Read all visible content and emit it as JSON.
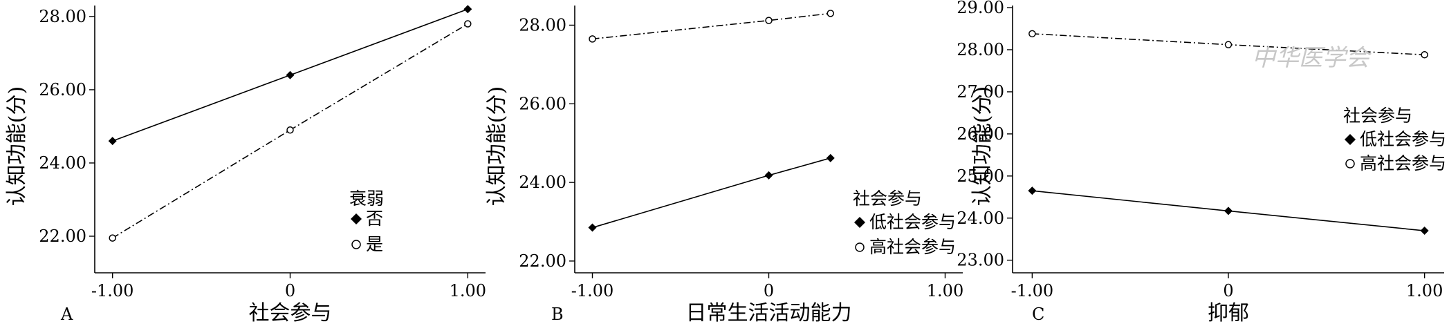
{
  "watermark_text": "中华医学会",
  "chart_data": [
    {
      "type": "line",
      "panel_label": "A",
      "xlabel": "社会参与",
      "ylabel": "认知功能(分)",
      "x_ticks": [
        "-1.00",
        "0",
        "1.00"
      ],
      "y_ticks": [
        "22.00",
        "24.00",
        "26.00",
        "28.00"
      ],
      "xlim": [
        -1.1,
        1.1
      ],
      "ylim": [
        21.0,
        28.3
      ],
      "legend_title": "衰弱",
      "legend_position": "center-right",
      "series": [
        {
          "name": "否",
          "marker": "filled-diamond",
          "linestyle": "solid",
          "x": [
            -1,
            0,
            1
          ],
          "y": [
            24.6,
            26.4,
            28.2
          ]
        },
        {
          "name": "是",
          "marker": "open-circle",
          "linestyle": "dashdot",
          "x": [
            -1,
            0,
            1
          ],
          "y": [
            21.95,
            24.9,
            27.8
          ]
        }
      ]
    },
    {
      "type": "line",
      "panel_label": "B",
      "xlabel": "日常生活活动能力",
      "ylabel": "认知功能(分)",
      "x_ticks": [
        "-1.00",
        "0",
        "1.00"
      ],
      "y_ticks": [
        "22.00",
        "24.00",
        "26.00",
        "28.00"
      ],
      "xlim": [
        -1.1,
        1.1
      ],
      "ylim": [
        21.7,
        28.5
      ],
      "legend_title": "社会参与",
      "legend_position": "bottom-right",
      "series": [
        {
          "name": "低社会参与",
          "marker": "filled-diamond",
          "linestyle": "solid",
          "x": [
            -1,
            0,
            0.35
          ],
          "y": [
            22.85,
            24.18,
            24.62
          ]
        },
        {
          "name": "高社会参与",
          "marker": "open-circle",
          "linestyle": "dashdot",
          "x": [
            -1,
            0,
            0.35
          ],
          "y": [
            27.65,
            28.12,
            28.3
          ]
        }
      ]
    },
    {
      "type": "line",
      "panel_label": "C",
      "xlabel": "抑郁",
      "ylabel": "认知功能(分)",
      "x_ticks": [
        "-1.00",
        "0",
        "1.00"
      ],
      "y_ticks": [
        "23.00",
        "24.00",
        "25.00",
        "26.00",
        "27.00",
        "28.00",
        "29.00"
      ],
      "xlim": [
        -1.1,
        1.1
      ],
      "ylim": [
        22.7,
        29.05
      ],
      "legend_title": "社会参与",
      "legend_position": "right",
      "series": [
        {
          "name": "低社会参与",
          "marker": "filled-diamond",
          "linestyle": "solid",
          "x": [
            -1,
            0,
            1
          ],
          "y": [
            24.65,
            24.17,
            23.7
          ]
        },
        {
          "name": "高社会参与",
          "marker": "open-circle",
          "linestyle": "dashdot",
          "x": [
            -1,
            0,
            1
          ],
          "y": [
            28.38,
            28.12,
            27.88
          ]
        }
      ]
    }
  ]
}
